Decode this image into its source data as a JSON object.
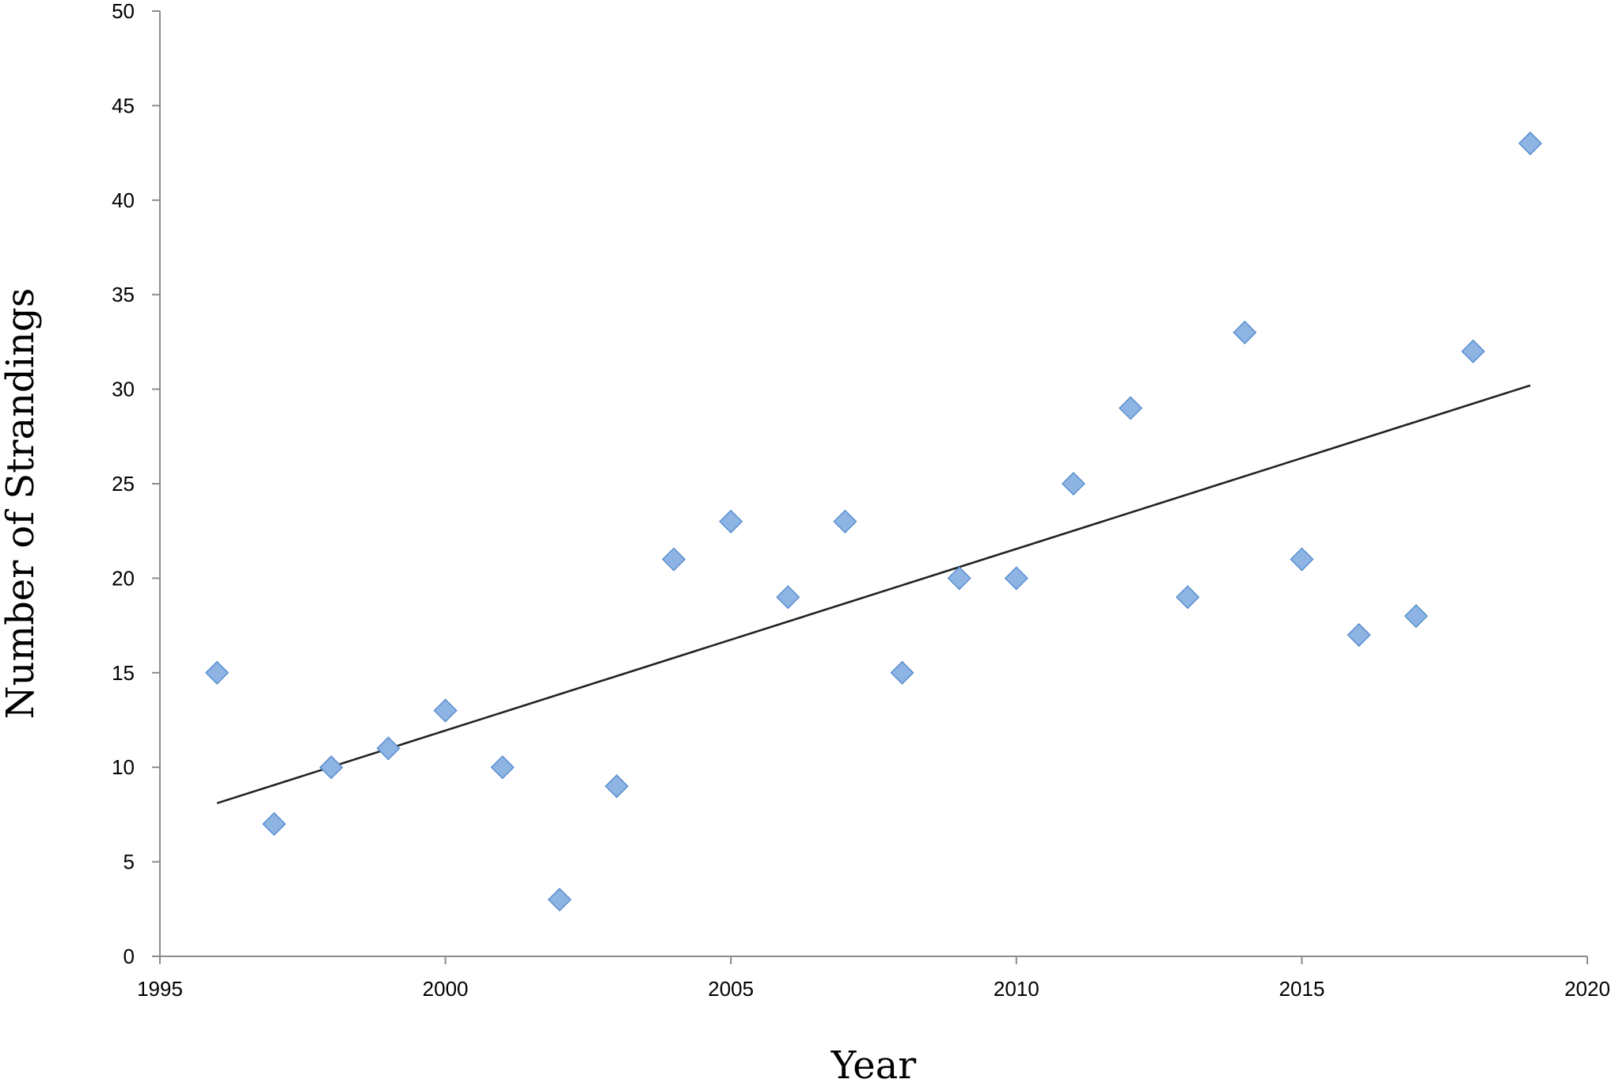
{
  "chart_data": {
    "type": "scatter",
    "title": "",
    "xlabel": "Year",
    "ylabel": "Number of Strandings",
    "xlim": [
      1995,
      2020
    ],
    "ylim": [
      0,
      50
    ],
    "xticks": [
      1995,
      2000,
      2005,
      2010,
      2015,
      2020
    ],
    "yticks": [
      0,
      5,
      10,
      15,
      20,
      25,
      30,
      35,
      40,
      45,
      50
    ],
    "grid": false,
    "legend": "none",
    "marker": "diamond",
    "marker_color": "#8eb4e3",
    "marker_edge_color": "#5b8fd0",
    "trendline_color": "#222222",
    "series": [
      {
        "x": [
          1996,
          1997,
          1998,
          1999,
          2000,
          2001,
          2002,
          2003,
          2004,
          2005,
          2006,
          2007,
          2008,
          2009,
          2010,
          2011,
          2012,
          2013,
          2014,
          2015,
          2016,
          2017,
          2018,
          2019
        ],
        "y": [
          15,
          7,
          10,
          11,
          13,
          10,
          3,
          9,
          21,
          23,
          19,
          23,
          15,
          20,
          20,
          25,
          29,
          19,
          33,
          21,
          17,
          18,
          32,
          43
        ]
      }
    ],
    "trendline": {
      "type": "linear",
      "x": [
        1996,
        2019
      ],
      "y": [
        8.1,
        30.2
      ]
    }
  }
}
